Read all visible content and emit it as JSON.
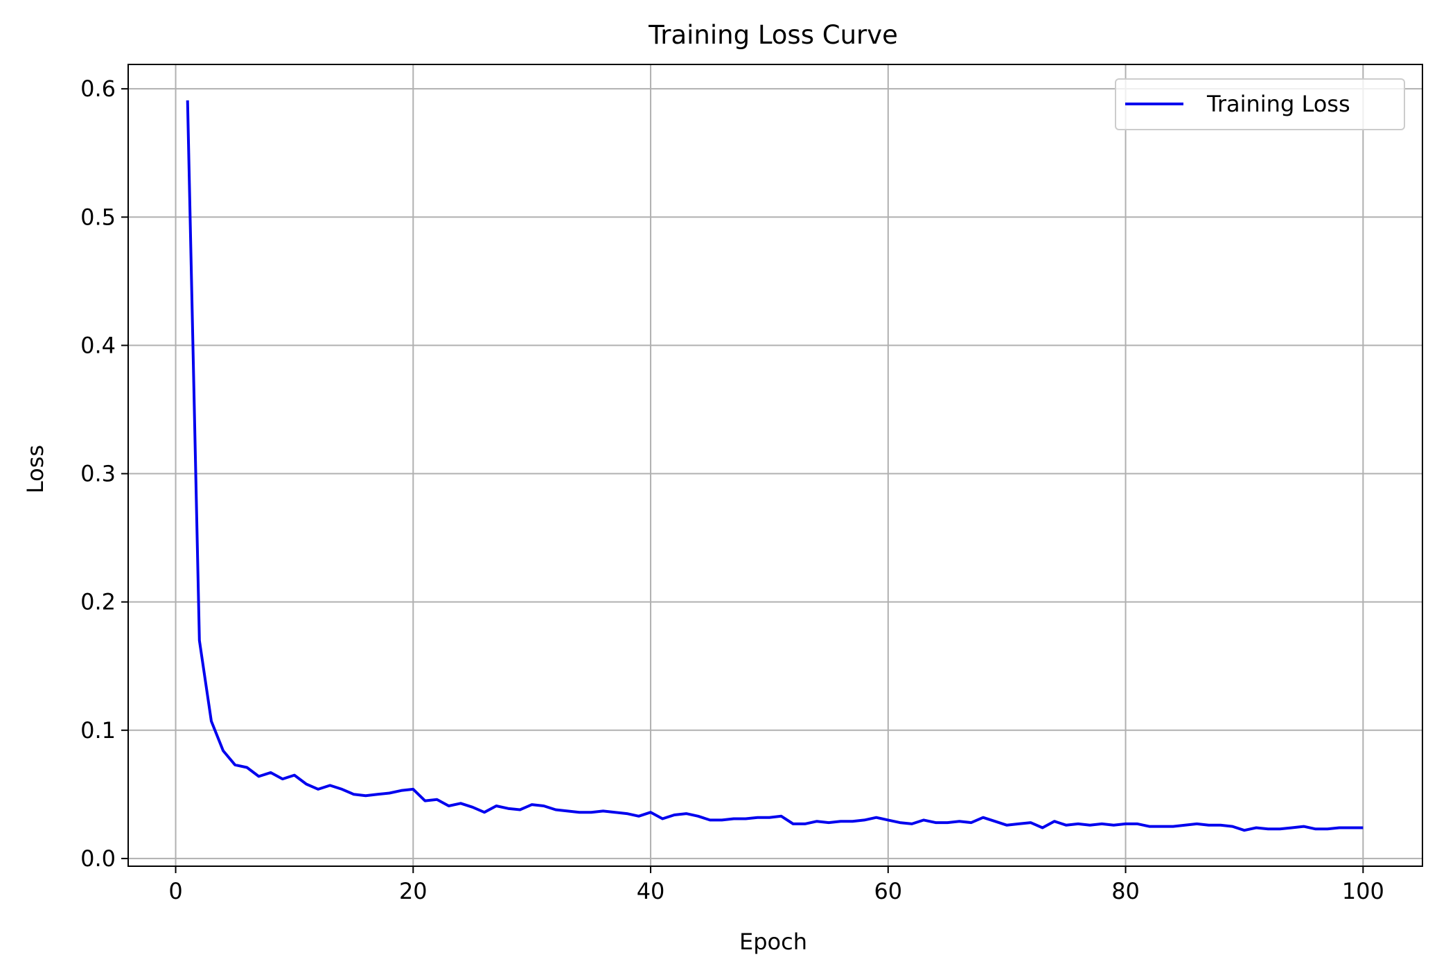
{
  "chart_data": {
    "type": "line",
    "title": "Training Loss Curve",
    "xlabel": "Epoch",
    "ylabel": "Loss",
    "xlim": [
      -4,
      105
    ],
    "ylim": [
      -0.006,
      0.619
    ],
    "xticks": [
      0,
      20,
      40,
      60,
      80,
      100
    ],
    "xtick_labels": [
      "0",
      "20",
      "40",
      "60",
      "80",
      "100"
    ],
    "yticks": [
      0.0,
      0.1,
      0.2,
      0.3,
      0.4,
      0.5,
      0.6
    ],
    "ytick_labels": [
      "0.0",
      "0.1",
      "0.2",
      "0.3",
      "0.4",
      "0.5",
      "0.6"
    ],
    "grid": true,
    "legend_position": "top-right",
    "series": [
      {
        "name": "Training Loss",
        "color": "#0000ee",
        "x": [
          1,
          2,
          3,
          4,
          5,
          6,
          7,
          8,
          9,
          10,
          11,
          12,
          13,
          14,
          15,
          16,
          17,
          18,
          19,
          20,
          21,
          22,
          23,
          24,
          25,
          26,
          27,
          28,
          29,
          30,
          31,
          32,
          33,
          34,
          35,
          36,
          37,
          38,
          39,
          40,
          41,
          42,
          43,
          44,
          45,
          46,
          47,
          48,
          49,
          50,
          51,
          52,
          53,
          54,
          55,
          56,
          57,
          58,
          59,
          60,
          61,
          62,
          63,
          64,
          65,
          66,
          67,
          68,
          69,
          70,
          71,
          72,
          73,
          74,
          75,
          76,
          77,
          78,
          79,
          80,
          81,
          82,
          83,
          84,
          85,
          86,
          87,
          88,
          89,
          90,
          91,
          92,
          93,
          94,
          95,
          96,
          97,
          98,
          99,
          100
        ],
        "y": [
          0.591,
          0.17,
          0.107,
          0.084,
          0.073,
          0.071,
          0.064,
          0.067,
          0.062,
          0.065,
          0.058,
          0.054,
          0.057,
          0.054,
          0.05,
          0.049,
          0.05,
          0.051,
          0.053,
          0.054,
          0.045,
          0.046,
          0.041,
          0.043,
          0.04,
          0.036,
          0.041,
          0.039,
          0.038,
          0.042,
          0.041,
          0.038,
          0.037,
          0.036,
          0.036,
          0.037,
          0.036,
          0.035,
          0.033,
          0.036,
          0.031,
          0.034,
          0.035,
          0.033,
          0.03,
          0.03,
          0.031,
          0.031,
          0.032,
          0.032,
          0.033,
          0.027,
          0.027,
          0.029,
          0.028,
          0.029,
          0.029,
          0.03,
          0.032,
          0.03,
          0.028,
          0.027,
          0.03,
          0.028,
          0.028,
          0.029,
          0.028,
          0.032,
          0.029,
          0.026,
          0.027,
          0.028,
          0.024,
          0.029,
          0.026,
          0.027,
          0.026,
          0.027,
          0.026,
          0.027,
          0.027,
          0.025,
          0.025,
          0.025,
          0.026,
          0.027,
          0.026,
          0.026,
          0.025,
          0.022,
          0.024,
          0.023,
          0.023,
          0.024,
          0.025,
          0.023,
          0.023,
          0.024,
          0.024,
          0.024
        ]
      }
    ]
  }
}
